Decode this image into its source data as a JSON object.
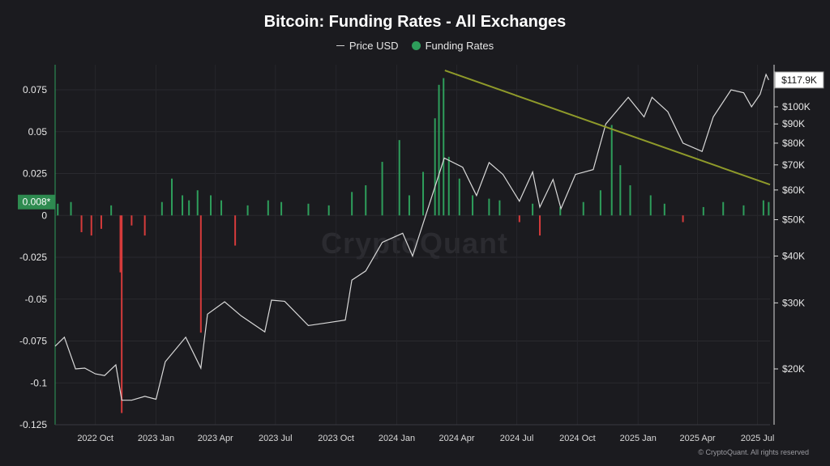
{
  "chart_data": {
    "type": "bar",
    "title": "Bitcoin: Funding Rates - All Exchanges",
    "legend": [
      {
        "name": "Price USD",
        "marker": "line",
        "color": "#cfcfcf"
      },
      {
        "name": "Funding Rates",
        "marker": "dot",
        "color": "#2e9e5b"
      }
    ],
    "legend_placement": "top-center",
    "x_ticks": [
      "2022 Oct",
      "2023 Jan",
      "2023 Apr",
      "2023 Jul",
      "2023 Oct",
      "2024 Jan",
      "2024 Apr",
      "2024 Jul",
      "2024 Oct",
      "2025 Jan",
      "2025 Apr",
      "2025 Jul"
    ],
    "x_range": [
      "2022-08-01",
      "2025-07-20"
    ],
    "left_axis": {
      "label": "",
      "ticks": [
        "0.075",
        "0.05",
        "0.025",
        "0",
        "-0.025",
        "-0.05",
        "-0.075",
        "-0.1",
        "-0.125"
      ],
      "range": [
        -0.125,
        0.09
      ],
      "current_value_label": "0.008*"
    },
    "right_axis": {
      "label": "",
      "scale": "log",
      "ticks": [
        "$100K",
        "$90K",
        "$80K",
        "$70K",
        "$60K",
        "$50K",
        "$40K",
        "$30K",
        "$20K"
      ],
      "current_value_label": "$117.9K"
    },
    "series": [
      {
        "name": "Funding Rates",
        "type": "bar",
        "positive_color": "#2e9e5b",
        "negative_color": "#d63b3b",
        "points": [
          [
            "2022-08-05",
            0.007
          ],
          [
            "2022-08-25",
            0.008
          ],
          [
            "2022-09-10",
            -0.01
          ],
          [
            "2022-09-25",
            -0.012
          ],
          [
            "2022-10-10",
            -0.008
          ],
          [
            "2022-10-25",
            0.006
          ],
          [
            "2022-11-08",
            -0.034
          ],
          [
            "2022-11-10",
            -0.118
          ],
          [
            "2022-11-25",
            -0.006
          ],
          [
            "2022-12-15",
            -0.012
          ],
          [
            "2023-01-10",
            0.008
          ],
          [
            "2023-01-25",
            0.022
          ],
          [
            "2023-02-10",
            0.012
          ],
          [
            "2023-02-20",
            0.009
          ],
          [
            "2023-03-05",
            0.015
          ],
          [
            "2023-03-10",
            -0.07
          ],
          [
            "2023-03-25",
            0.012
          ],
          [
            "2023-04-10",
            0.009
          ],
          [
            "2023-05-01",
            -0.018
          ],
          [
            "2023-05-20",
            0.006
          ],
          [
            "2023-06-20",
            0.009
          ],
          [
            "2023-07-10",
            0.008
          ],
          [
            "2023-08-20",
            0.007
          ],
          [
            "2023-09-20",
            0.006
          ],
          [
            "2023-10-25",
            0.014
          ],
          [
            "2023-11-15",
            0.018
          ],
          [
            "2023-12-10",
            0.032
          ],
          [
            "2024-01-05",
            0.045
          ],
          [
            "2024-01-20",
            0.012
          ],
          [
            "2024-02-10",
            0.026
          ],
          [
            "2024-02-28",
            0.058
          ],
          [
            "2024-03-05",
            0.078
          ],
          [
            "2024-03-12",
            0.082
          ],
          [
            "2024-03-20",
            0.035
          ],
          [
            "2024-04-05",
            0.022
          ],
          [
            "2024-04-25",
            0.012
          ],
          [
            "2024-05-20",
            0.01
          ],
          [
            "2024-06-05",
            0.009
          ],
          [
            "2024-07-05",
            -0.004
          ],
          [
            "2024-07-25",
            0.007
          ],
          [
            "2024-08-05",
            -0.012
          ],
          [
            "2024-09-05",
            0.005
          ],
          [
            "2024-10-10",
            0.008
          ],
          [
            "2024-11-05",
            0.015
          ],
          [
            "2024-11-22",
            0.054
          ],
          [
            "2024-12-05",
            0.03
          ],
          [
            "2024-12-20",
            0.018
          ],
          [
            "2025-01-20",
            0.012
          ],
          [
            "2025-02-10",
            0.007
          ],
          [
            "2025-03-10",
            -0.004
          ],
          [
            "2025-04-10",
            0.005
          ],
          [
            "2025-05-10",
            0.008
          ],
          [
            "2025-06-10",
            0.006
          ],
          [
            "2025-07-10",
            0.009
          ],
          [
            "2025-07-18",
            0.008
          ]
        ]
      },
      {
        "name": "Price USD",
        "type": "line",
        "axis": "right",
        "color": "#d9d9d9",
        "points": [
          [
            "2022-08-01",
            23000
          ],
          [
            "2022-08-15",
            24300
          ],
          [
            "2022-09-01",
            20000
          ],
          [
            "2022-09-15",
            20100
          ],
          [
            "2022-10-01",
            19400
          ],
          [
            "2022-10-15",
            19200
          ],
          [
            "2022-11-01",
            20500
          ],
          [
            "2022-11-10",
            16500
          ],
          [
            "2022-11-25",
            16500
          ],
          [
            "2022-12-15",
            16900
          ],
          [
            "2023-01-01",
            16600
          ],
          [
            "2023-01-15",
            20900
          ],
          [
            "2023-02-15",
            24300
          ],
          [
            "2023-03-10",
            20100
          ],
          [
            "2023-03-20",
            28000
          ],
          [
            "2023-04-15",
            30200
          ],
          [
            "2023-05-10",
            27700
          ],
          [
            "2023-06-15",
            25100
          ],
          [
            "2023-06-25",
            30500
          ],
          [
            "2023-07-15",
            30300
          ],
          [
            "2023-08-20",
            26100
          ],
          [
            "2023-09-15",
            26500
          ],
          [
            "2023-10-15",
            27000
          ],
          [
            "2023-10-25",
            34500
          ],
          [
            "2023-11-15",
            36500
          ],
          [
            "2023-12-10",
            43500
          ],
          [
            "2024-01-10",
            46000
          ],
          [
            "2024-01-25",
            40000
          ],
          [
            "2024-02-15",
            52000
          ],
          [
            "2024-03-13",
            73000
          ],
          [
            "2024-04-10",
            69000
          ],
          [
            "2024-05-01",
            58000
          ],
          [
            "2024-05-20",
            71000
          ],
          [
            "2024-06-10",
            66000
          ],
          [
            "2024-07-05",
            56000
          ],
          [
            "2024-07-25",
            67000
          ],
          [
            "2024-08-05",
            54000
          ],
          [
            "2024-08-25",
            64000
          ],
          [
            "2024-09-06",
            53500
          ],
          [
            "2024-09-28",
            66000
          ],
          [
            "2024-10-25",
            68000
          ],
          [
            "2024-11-13",
            90000
          ],
          [
            "2024-12-17",
            106000
          ],
          [
            "2025-01-10",
            94000
          ],
          [
            "2025-01-22",
            106000
          ],
          [
            "2025-02-15",
            97000
          ],
          [
            "2025-03-10",
            80000
          ],
          [
            "2025-04-08",
            76000
          ],
          [
            "2025-04-25",
            94000
          ],
          [
            "2025-05-22",
            111000
          ],
          [
            "2025-06-10",
            109000
          ],
          [
            "2025-06-22",
            100000
          ],
          [
            "2025-07-05",
            108000
          ],
          [
            "2025-07-14",
            122000
          ],
          [
            "2025-07-18",
            117900
          ]
        ]
      }
    ],
    "trendline": {
      "color": "#8f9a2a",
      "from": [
        "2024-03-14",
        125000
      ],
      "to": [
        "2025-07-20",
        62000
      ]
    },
    "grid": true,
    "watermark": "CryptoQuant",
    "copyright": "© CryptoQuant. All rights reserved"
  }
}
